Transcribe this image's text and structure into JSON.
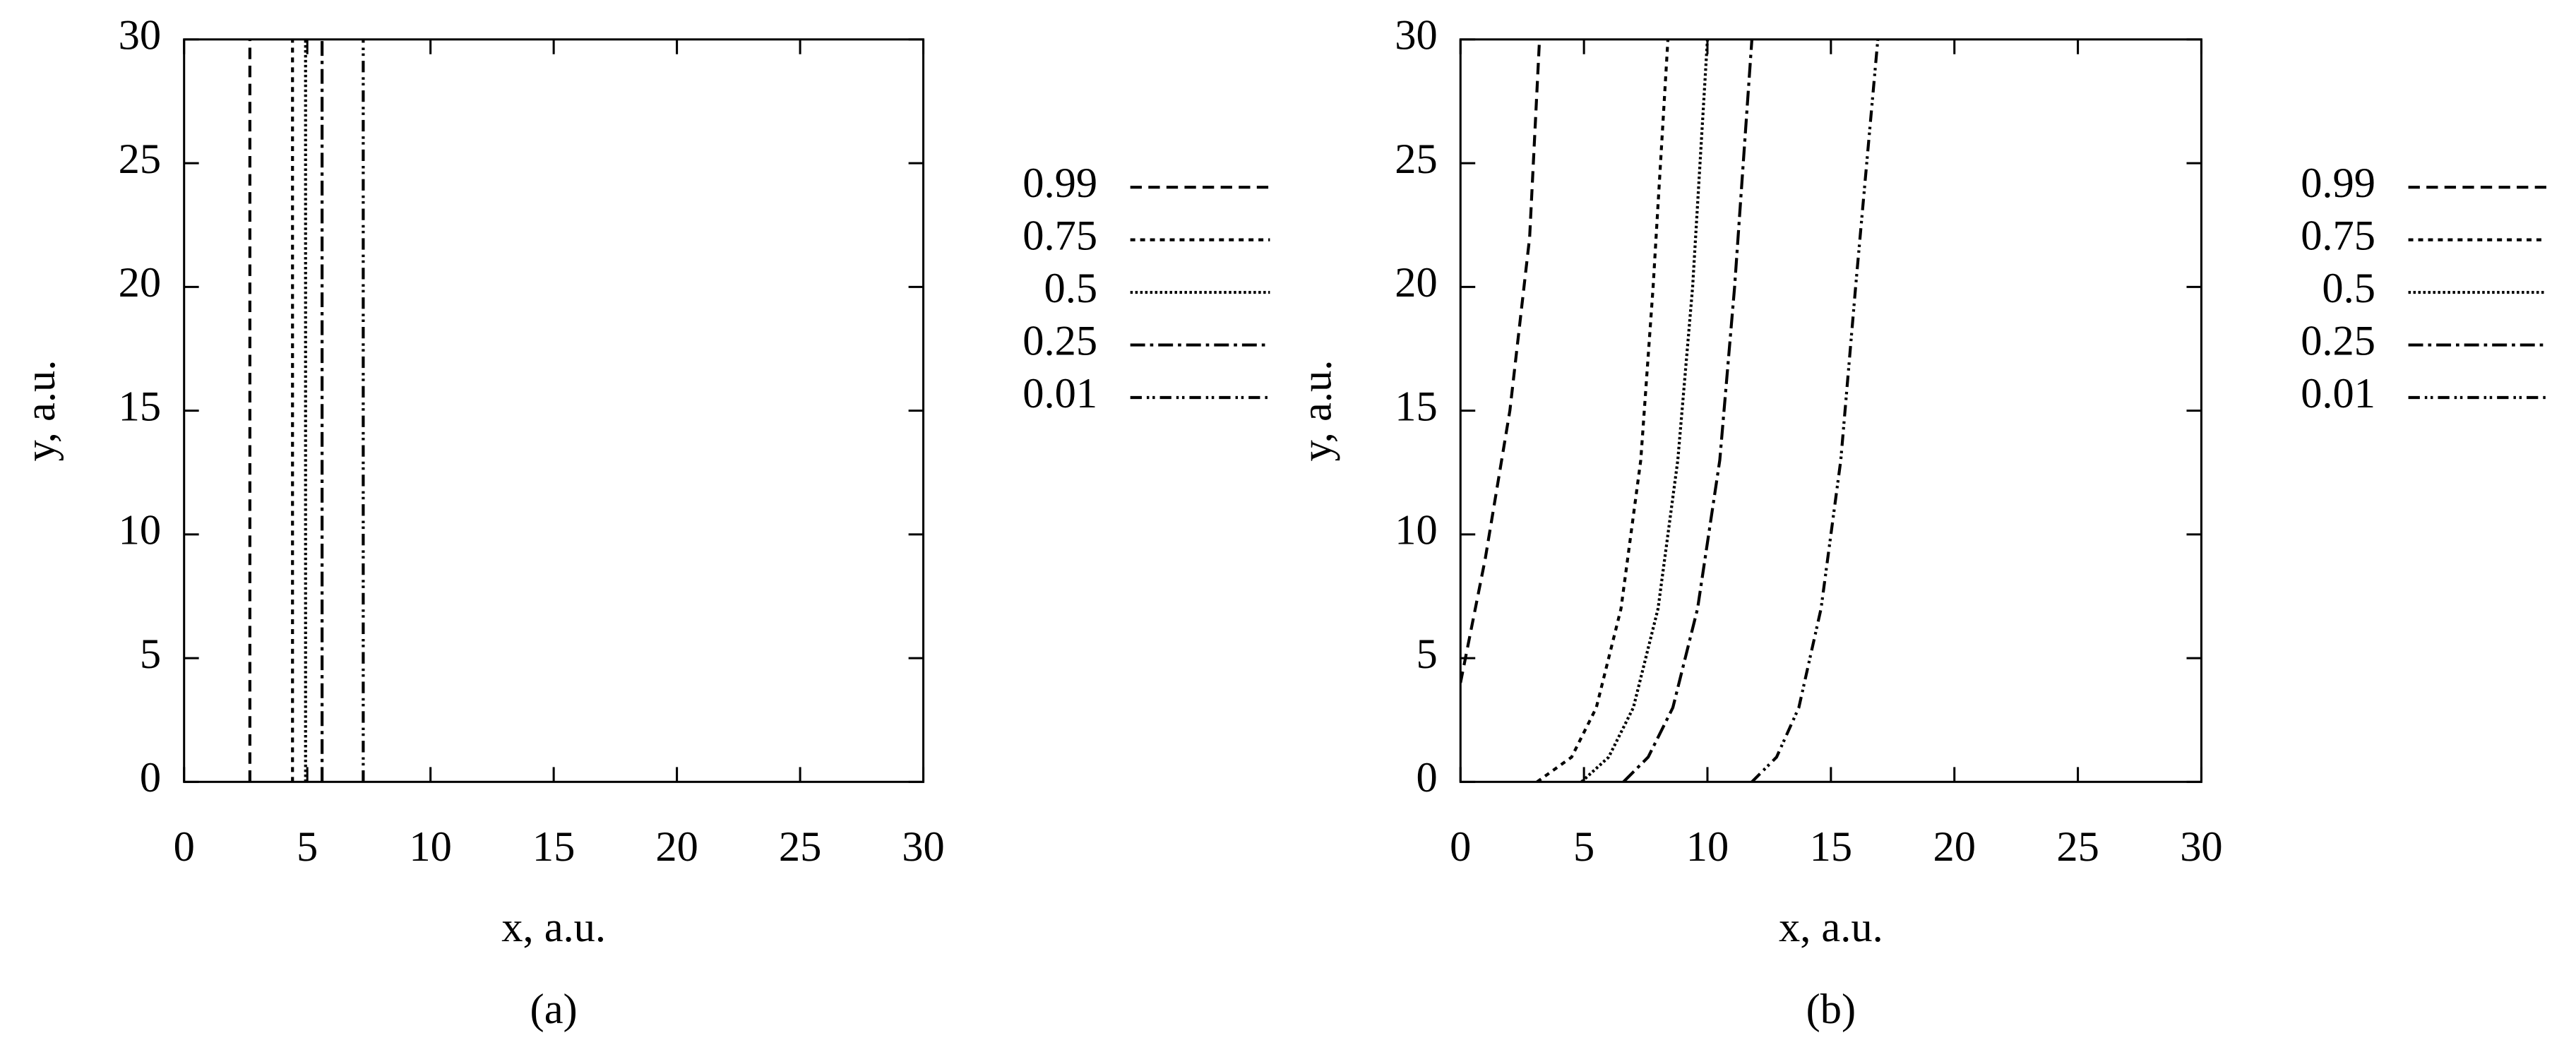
{
  "chart_data": [
    {
      "type": "line",
      "caption": "(a)",
      "x_label": "x, a.u.",
      "y_label": "y, a.u.",
      "xlim": [
        0,
        30
      ],
      "ylim": [
        0,
        30
      ],
      "xticks": [
        0,
        5,
        10,
        15,
        20,
        25,
        30
      ],
      "yticks": [
        0,
        5,
        10,
        15,
        20,
        25,
        30
      ],
      "legend": "outside right",
      "series": [
        {
          "name": "0.99",
          "color": "#000000",
          "x": [
            2.67,
            2.67
          ],
          "values": [
            0,
            30
          ]
        },
        {
          "name": "0.75",
          "color": "#000000",
          "x": [
            4.4,
            4.4
          ],
          "values": [
            0,
            30
          ]
        },
        {
          "name": "0.5",
          "color": "#000000",
          "x": [
            4.93,
            4.93
          ],
          "values": [
            0,
            30
          ]
        },
        {
          "name": "0.25",
          "color": "#000000",
          "x": [
            5.6,
            5.6
          ],
          "values": [
            0,
            30
          ]
        },
        {
          "name": "0.01",
          "color": "#000000",
          "x": [
            7.27,
            7.27
          ],
          "values": [
            0,
            30
          ]
        }
      ]
    },
    {
      "type": "line",
      "caption": "(b)",
      "x_label": "x, a.u.",
      "y_label": "y, a.u.",
      "xlim": [
        0,
        30
      ],
      "ylim": [
        0,
        30
      ],
      "xticks": [
        0,
        5,
        10,
        15,
        20,
        25,
        30
      ],
      "yticks": [
        0,
        5,
        10,
        15,
        20,
        25,
        30
      ],
      "legend": "outside right",
      "series": [
        {
          "name": "0.99",
          "color": "#000000",
          "x": [
            0,
            1,
            2,
            2.8,
            3.2
          ],
          "values": [
            4,
            9,
            15,
            22,
            30
          ]
        },
        {
          "name": "0.75",
          "color": "#000000",
          "x": [
            3.1,
            4.5,
            5.5,
            6.5,
            7.3,
            7.8,
            8.4
          ],
          "values": [
            0,
            1,
            3,
            7,
            13,
            20,
            30
          ]
        },
        {
          "name": "0.5",
          "color": "#000000",
          "x": [
            4.9,
            6,
            7,
            8,
            8.8,
            9.4,
            10
          ],
          "values": [
            0,
            1,
            3,
            7,
            13,
            20,
            30
          ]
        },
        {
          "name": "0.25",
          "color": "#000000",
          "x": [
            6.6,
            7.6,
            8.6,
            9.6,
            10.5,
            11.1,
            11.8
          ],
          "values": [
            0,
            1,
            3,
            7,
            13,
            20,
            30
          ]
        },
        {
          "name": "0.01",
          "color": "#000000",
          "x": [
            11.8,
            12.8,
            13.7,
            14.6,
            15.4,
            16,
            16.9
          ],
          "values": [
            0,
            1,
            3,
            7,
            13,
            20,
            30
          ]
        }
      ]
    }
  ]
}
